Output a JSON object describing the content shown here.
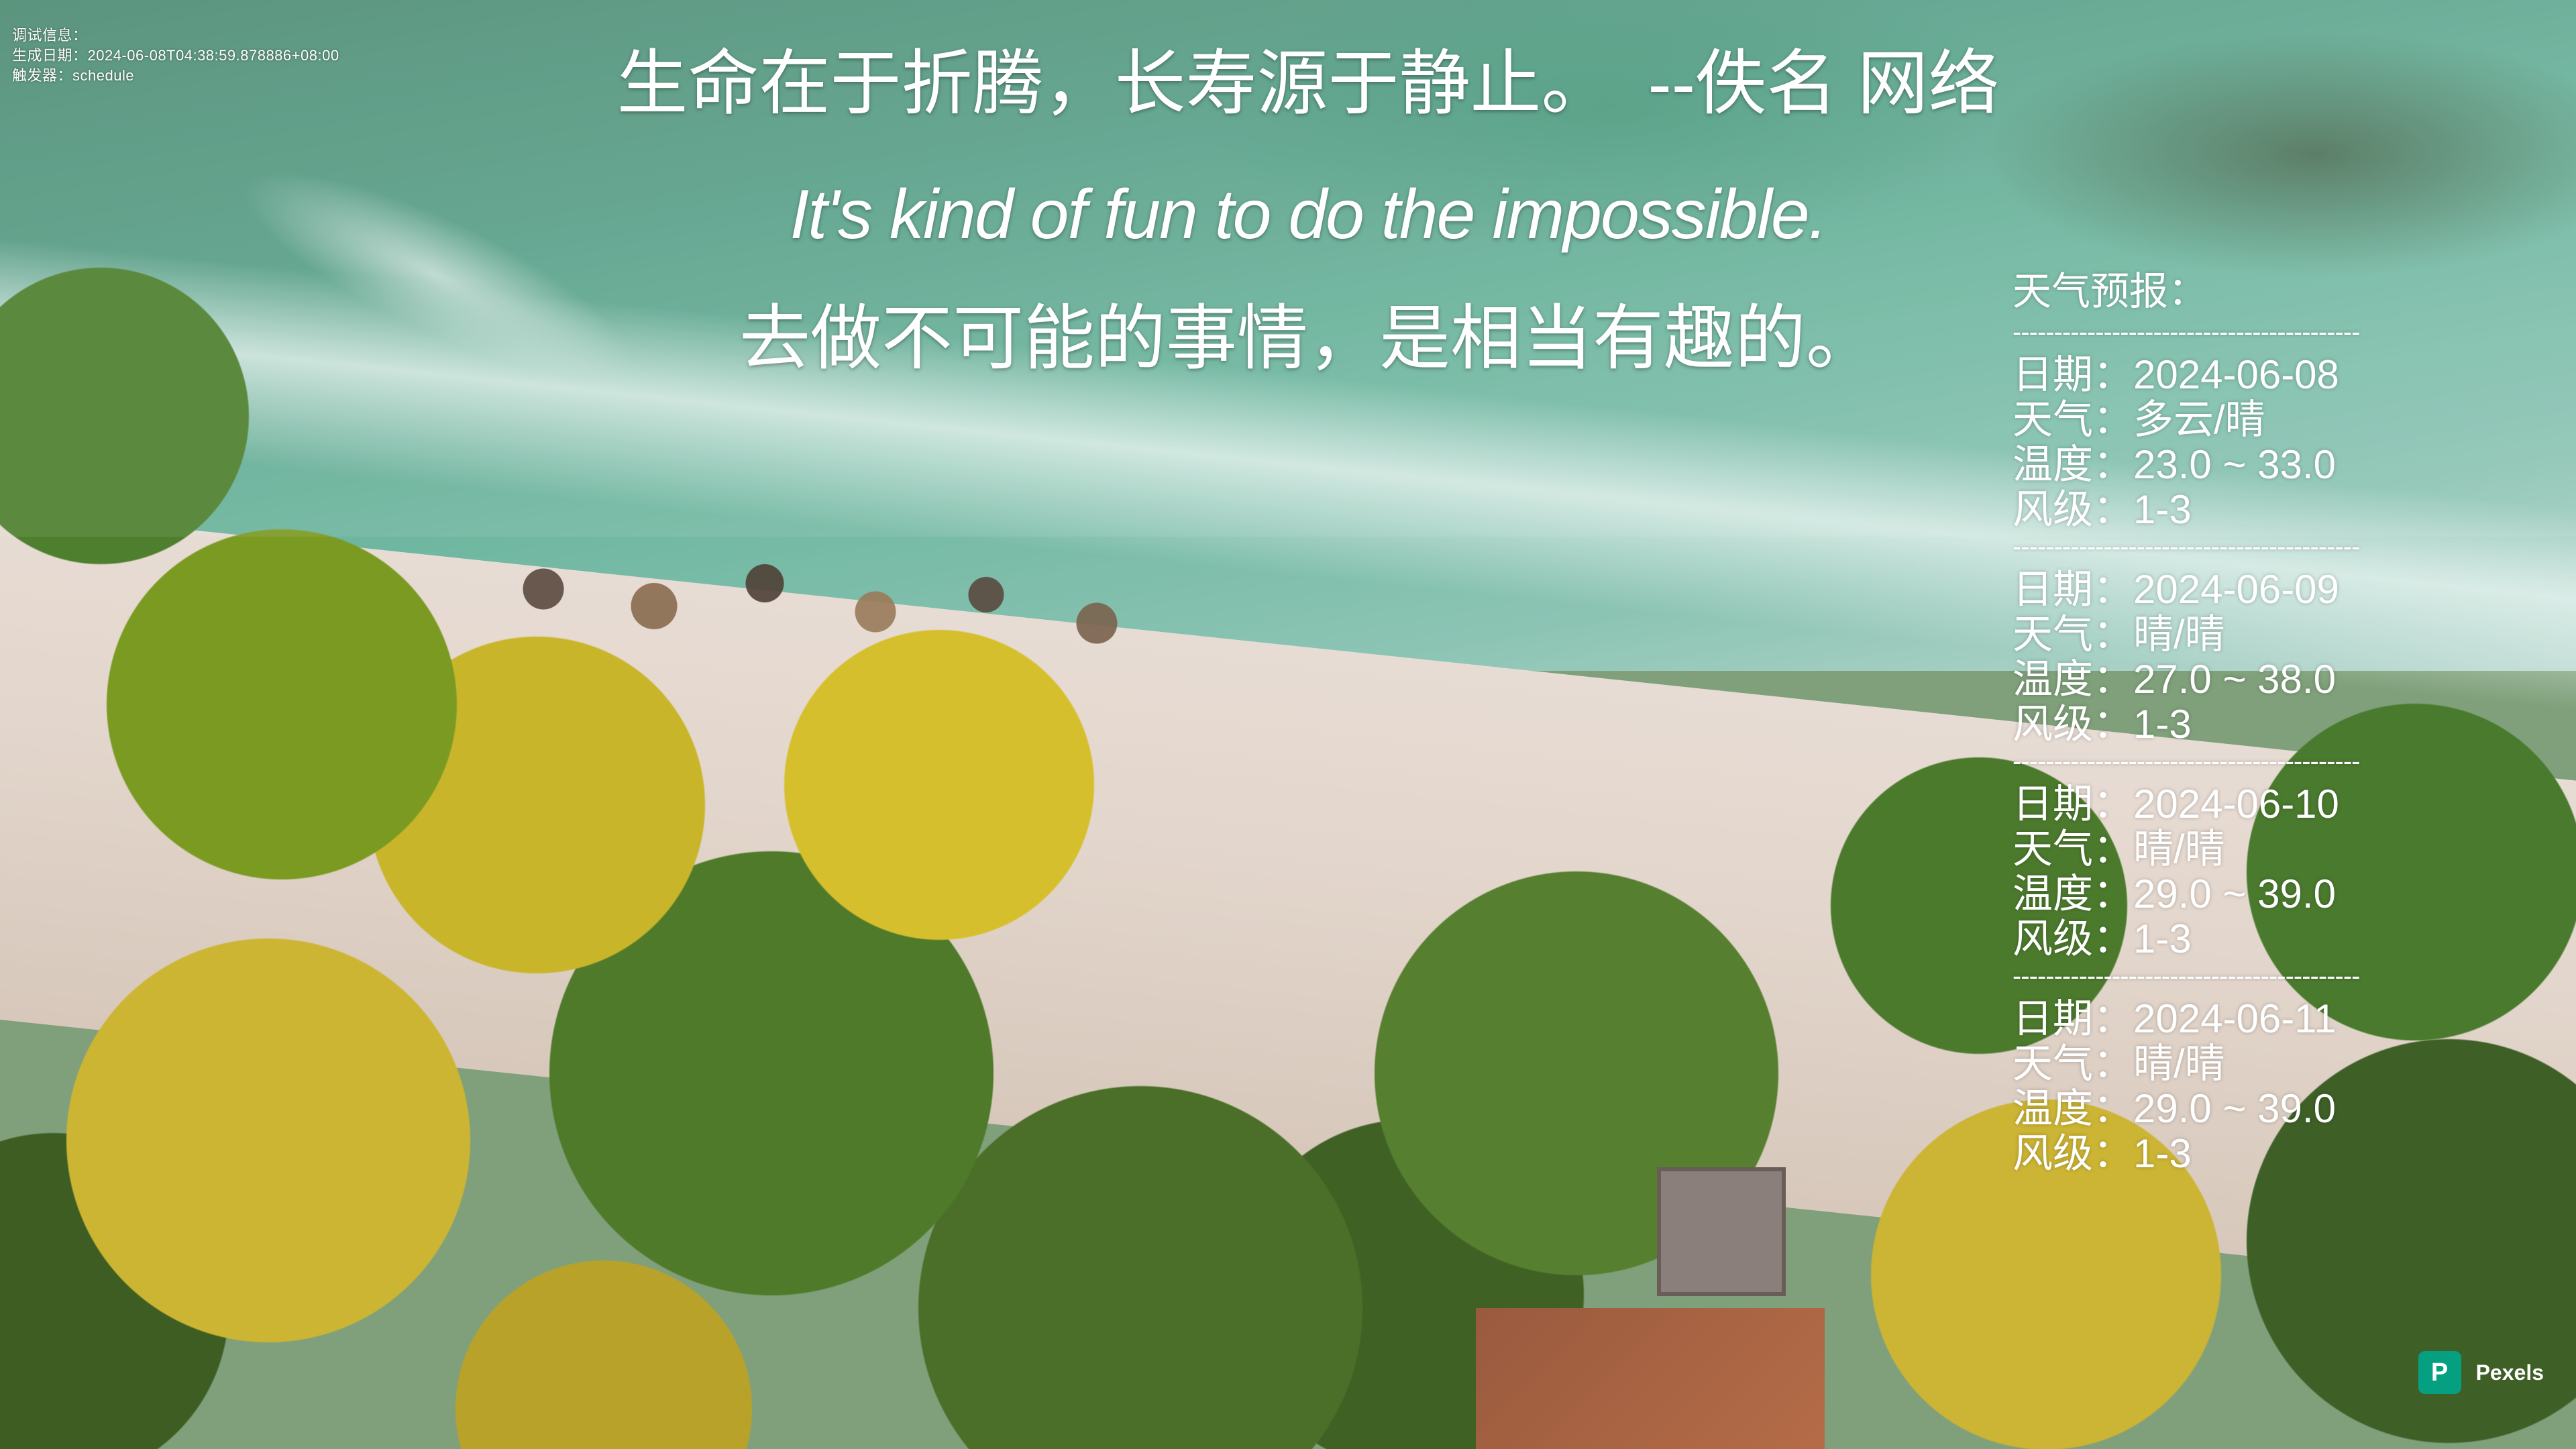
{
  "debug": {
    "label": "调试信息：",
    "generated_label": "生成日期：",
    "generated_value": "2024-06-08T04:38:59.878886+08:00",
    "trigger_label": "触发器：",
    "trigger_value": "schedule"
  },
  "quote": {
    "chinese": "生命在于折腾，长寿源于静止。　--佚名 网络",
    "english": "It's kind of fun to do the impossible.",
    "chinese_translation": "去做不可能的事情，是相当有趣的。"
  },
  "weather": {
    "title": "天气预报：",
    "divider": "------------------------------------------",
    "labels": {
      "date": "日期：",
      "weather": "天气：",
      "temperature": "温度：",
      "wind": "风级："
    },
    "days": [
      {
        "date": "2024-06-08",
        "weather": "多云/晴",
        "temperature": "23.0 ~ 33.0",
        "wind": "1-3"
      },
      {
        "date": "2024-06-09",
        "weather": "晴/晴",
        "temperature": "27.0 ~ 38.0",
        "wind": "1-3"
      },
      {
        "date": "2024-06-10",
        "weather": "晴/晴",
        "temperature": "29.0 ~ 39.0",
        "wind": "1-3"
      },
      {
        "date": "2024-06-11",
        "weather": "晴/晴",
        "temperature": "29.0 ~ 39.0",
        "wind": "1-3"
      }
    ]
  },
  "watermark": {
    "brand": "Pexels",
    "icon": "pexels-logo-icon",
    "color": "#05a081"
  }
}
